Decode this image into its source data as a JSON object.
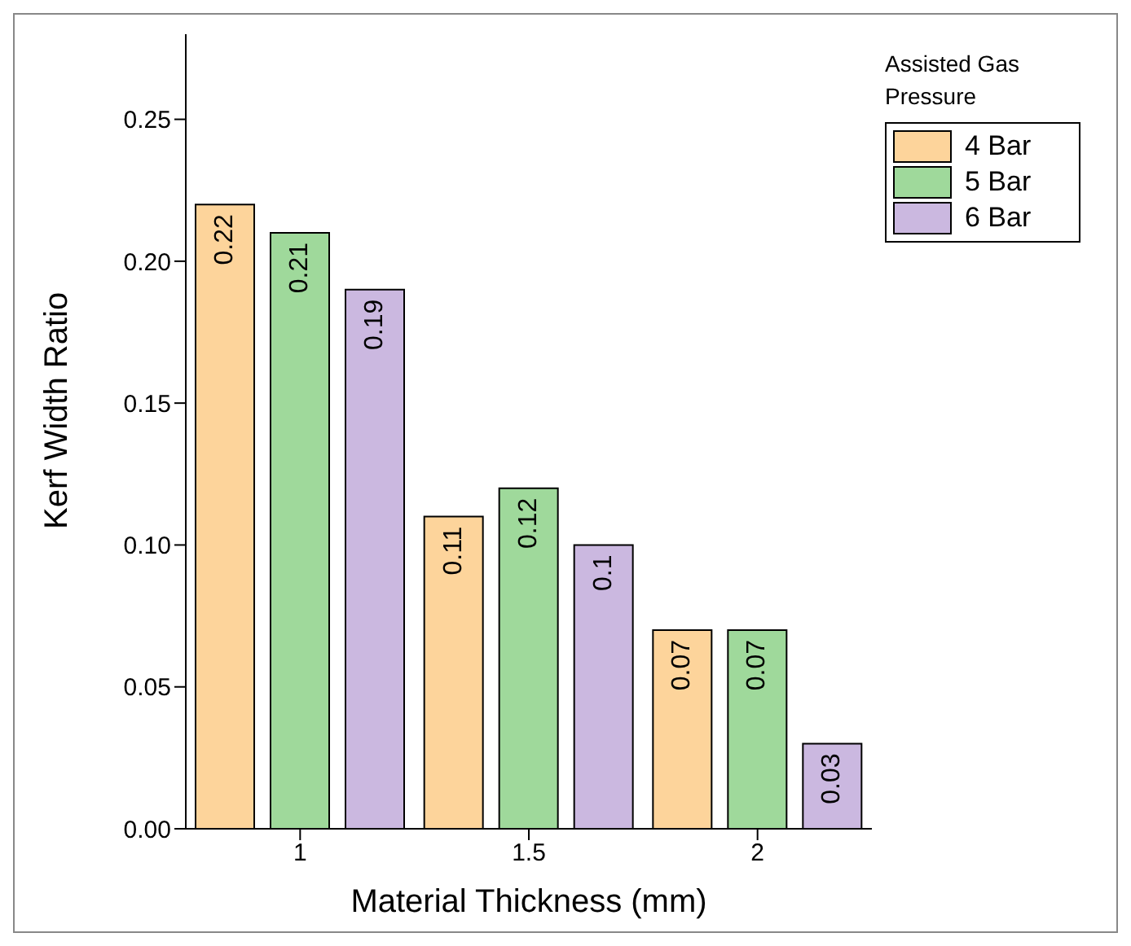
{
  "chart_data": {
    "type": "bar",
    "xlabel": "Material Thickness (mm)",
    "ylabel": "Kerf Width Ratio",
    "legend_title": "Assisted Gas Pressure",
    "categories": [
      "1",
      "1.5",
      "2"
    ],
    "series": [
      {
        "name": "4 Bar",
        "color": "#fdd49b",
        "values": [
          0.22,
          0.11,
          0.07
        ]
      },
      {
        "name": "5 Bar",
        "color": "#9fd99b",
        "values": [
          0.21,
          0.12,
          0.07
        ]
      },
      {
        "name": "6 Bar",
        "color": "#cbb8e0",
        "values": [
          0.19,
          0.1,
          0.03
        ]
      }
    ],
    "ylim": [
      0,
      0.28
    ],
    "yticks": [
      {
        "value": 0,
        "label": "0.00"
      },
      0.05,
      {
        "value": 0.1,
        "label": "0.10"
      },
      0.15,
      {
        "value": 0.2,
        "label": "0.20"
      },
      0.25
    ],
    "data_labels": true,
    "legend": "top right",
    "grid": false
  }
}
